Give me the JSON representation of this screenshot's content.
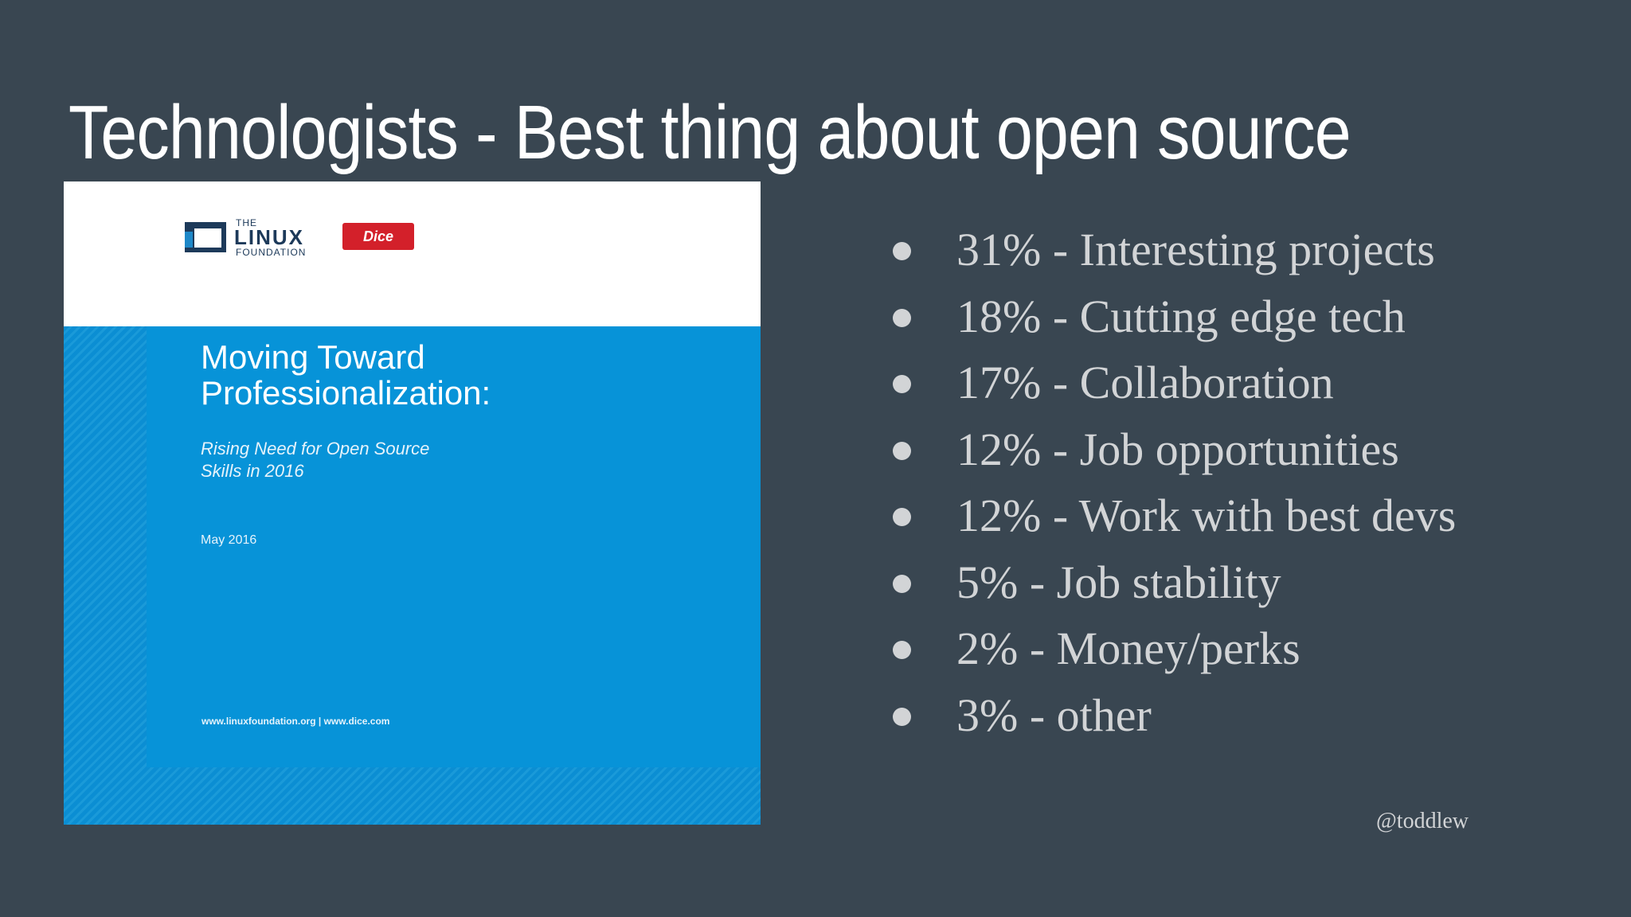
{
  "slide": {
    "title": "Technologists - Best thing about open source",
    "handle": "@toddlew"
  },
  "report_cover": {
    "logo_the": "THE",
    "logo_linux": "LINUX",
    "logo_foundation": "FOUNDATION",
    "logo_dice": "Dice",
    "title": "Moving Toward\nProfessionalization:",
    "subtitle": "Rising Need for Open Source\nSkills in 2016",
    "date": "May 2016",
    "urls": "www.linuxfoundation.org | www.dice.com",
    "colors": {
      "cover_blue": "#0a8fd5",
      "dice_red": "#d3202a",
      "linux_navy": "#1d3a5a"
    }
  },
  "stats": [
    {
      "text": "31% - Interesting projects"
    },
    {
      "text": "18% - Cutting edge tech"
    },
    {
      "text": "17% - Collaboration"
    },
    {
      "text": "12% - Job opportunities"
    },
    {
      "text": "12% - Work with best devs"
    },
    {
      "text": "5% - Job stability"
    },
    {
      "text": "2% - Money/perks"
    },
    {
      "text": "3% - other"
    }
  ],
  "colors": {
    "background": "#394651",
    "title": "#ffffff",
    "body_text": "#d2d4d6"
  }
}
